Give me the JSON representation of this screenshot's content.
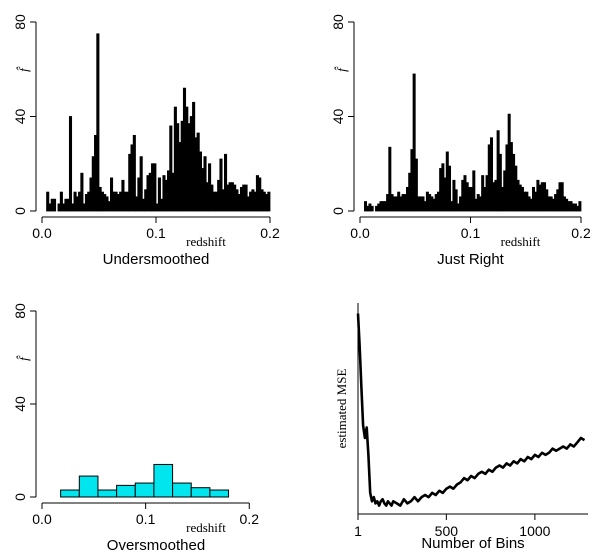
{
  "colors": {
    "line": "#000000",
    "oversmoothed_fill": "#00e5ee"
  },
  "chart_data": [
    {
      "id": "undersmoothed",
      "type": "bar",
      "title": "Undersmoothed",
      "xlabel": "redshift",
      "ylabel": "f̂",
      "xlim": [
        0.0,
        0.2
      ],
      "ylim": [
        0,
        80
      ],
      "xticks": [
        0.0,
        0.1,
        0.2
      ],
      "xtick_labels": [
        "0.0",
        "0.1",
        "0.2"
      ],
      "yticks": [
        0,
        40,
        80
      ],
      "ytick_labels": [
        "0",
        "40",
        "80"
      ],
      "bin_width": 0.002,
      "bin_start": 0.004,
      "values": [
        8,
        3,
        5,
        5,
        0,
        3,
        8,
        3,
        5,
        5,
        40,
        3,
        8,
        6,
        8,
        16,
        3,
        7,
        8,
        14,
        23,
        32,
        75,
        10,
        8,
        7,
        6,
        4,
        14,
        8,
        8,
        7,
        8,
        13,
        8,
        8,
        24,
        28,
        32,
        6,
        14,
        23,
        5,
        9,
        15,
        16,
        20,
        20,
        3,
        14,
        5,
        15,
        13,
        17,
        36,
        16,
        44,
        37,
        29,
        38,
        52,
        44,
        37,
        40,
        46,
        31,
        33,
        25,
        18,
        23,
        12,
        20,
        11,
        8,
        8,
        13,
        22,
        9,
        24,
        11,
        12,
        12,
        11,
        9,
        7,
        10,
        11,
        11,
        6,
        8,
        9,
        8,
        15,
        14,
        9,
        8,
        7,
        8
      ],
      "grid": false,
      "legend": "none"
    },
    {
      "id": "just-right",
      "type": "bar",
      "title": "Just Right",
      "xlabel": "redshift",
      "ylabel": "f̂",
      "xlim": [
        0.0,
        0.2
      ],
      "ylim": [
        0,
        80
      ],
      "xticks": [
        0.0,
        0.1,
        0.2
      ],
      "xtick_labels": [
        "0.0",
        "0.1",
        "0.2"
      ],
      "yticks": [
        0,
        40,
        80
      ],
      "ytick_labels": [
        "0",
        "40",
        "80"
      ],
      "bin_width": 0.002,
      "bin_start": 0.004,
      "values": [
        4,
        2,
        3,
        2,
        0,
        2,
        3,
        4,
        4,
        4,
        7,
        27,
        7,
        6,
        6,
        8,
        6,
        7,
        7,
        10,
        16,
        26,
        58,
        22,
        6,
        6,
        6,
        4,
        8,
        7,
        6,
        5,
        7,
        8,
        18,
        20,
        14,
        25,
        19,
        4,
        13,
        9,
        3,
        6,
        13,
        15,
        12,
        10,
        10,
        17,
        5,
        7,
        6,
        15,
        10,
        15,
        28,
        31,
        12,
        13,
        34,
        24,
        10,
        17,
        28,
        41,
        29,
        24,
        19,
        13,
        11,
        10,
        8,
        8,
        6,
        5,
        10,
        8,
        13,
        11,
        12,
        12,
        9,
        6,
        6,
        5,
        7,
        9,
        12,
        12,
        6,
        5,
        4,
        4,
        3,
        3,
        2,
        4
      ],
      "grid": false,
      "legend": "none"
    },
    {
      "id": "oversmoothed",
      "type": "bar",
      "title": "Oversmoothed",
      "xlabel": "redshift",
      "ylabel": "f̂",
      "xlim": [
        0.0,
        0.22
      ],
      "ylim": [
        0,
        80
      ],
      "xticks": [
        0.0,
        0.1,
        0.2
      ],
      "xtick_labels": [
        "0.0",
        "0.1",
        "0.2"
      ],
      "yticks": [
        0,
        40,
        80
      ],
      "ytick_labels": [
        "0",
        "40",
        "80"
      ],
      "bin_width": 0.018,
      "bin_start": 0.0,
      "values": [
        0,
        3,
        9,
        3,
        5,
        6,
        14,
        6,
        4,
        3,
        0
      ],
      "grid": false,
      "legend": "none"
    },
    {
      "id": "mse",
      "type": "line",
      "title": "",
      "xlabel": "Number of Bins",
      "ylabel": "estimated MSE",
      "xlim": [
        1,
        1300
      ],
      "ylim": [
        0.0,
        1.0
      ],
      "xticks": [
        1,
        500,
        1000
      ],
      "xtick_labels": [
        "1",
        "500",
        "1000"
      ],
      "y_axis_ticks": false,
      "x": [
        1,
        10,
        20,
        30,
        40,
        50,
        60,
        70,
        80,
        90,
        100,
        110,
        120,
        130,
        140,
        150,
        160,
        170,
        180,
        190,
        200,
        220,
        240,
        260,
        280,
        300,
        320,
        340,
        360,
        380,
        400,
        420,
        440,
        460,
        480,
        500,
        520,
        540,
        560,
        580,
        600,
        620,
        640,
        660,
        680,
        700,
        720,
        740,
        760,
        780,
        800,
        820,
        840,
        860,
        880,
        900,
        920,
        940,
        960,
        980,
        1000,
        1020,
        1040,
        1060,
        1080,
        1100,
        1120,
        1140,
        1160,
        1180,
        1200,
        1220,
        1240,
        1260,
        1280
      ],
      "y": [
        0.95,
        0.8,
        0.6,
        0.42,
        0.36,
        0.41,
        0.28,
        0.1,
        0.06,
        0.08,
        0.05,
        0.06,
        0.04,
        0.06,
        0.07,
        0.05,
        0.04,
        0.06,
        0.05,
        0.04,
        0.06,
        0.05,
        0.04,
        0.07,
        0.05,
        0.06,
        0.08,
        0.06,
        0.08,
        0.09,
        0.08,
        0.1,
        0.09,
        0.11,
        0.1,
        0.12,
        0.13,
        0.12,
        0.14,
        0.15,
        0.17,
        0.16,
        0.18,
        0.17,
        0.19,
        0.2,
        0.19,
        0.21,
        0.2,
        0.22,
        0.23,
        0.22,
        0.24,
        0.23,
        0.25,
        0.24,
        0.26,
        0.25,
        0.27,
        0.26,
        0.28,
        0.27,
        0.29,
        0.28,
        0.29,
        0.31,
        0.3,
        0.31,
        0.32,
        0.31,
        0.33,
        0.32,
        0.34,
        0.36,
        0.35
      ],
      "grid": false,
      "legend": "none"
    }
  ]
}
